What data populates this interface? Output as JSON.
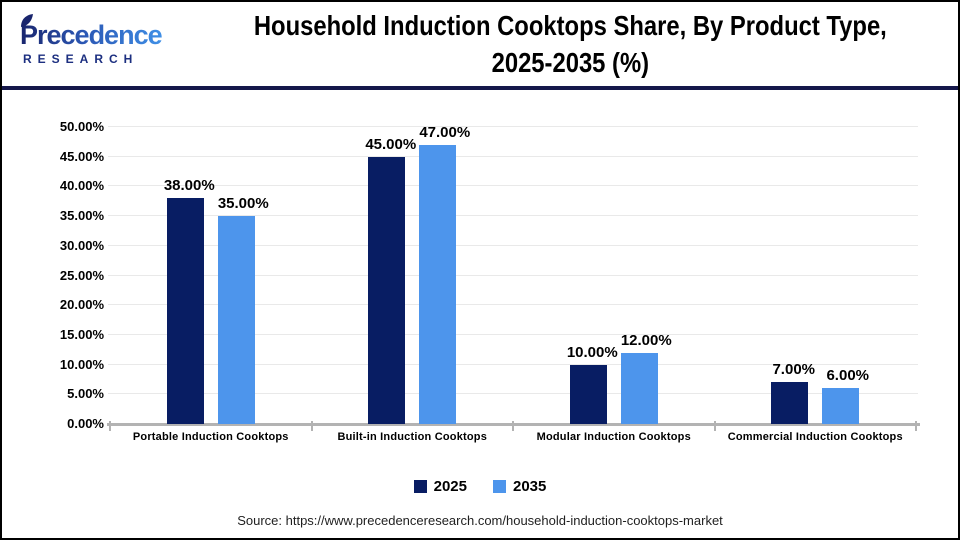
{
  "header": {
    "logo": {
      "name": "Precedence",
      "subname": "RESEARCH"
    },
    "title_line1": "Household Induction Cooktops Share, By Product Type,",
    "title_line2": "2025-2035 (%)"
  },
  "chart_data": {
    "type": "bar",
    "title": "Household Induction Cooktops Share, By Product Type, 2025-2035 (%)",
    "categories": [
      "Portable Induction Cooktops",
      "Built-in Induction Cooktops",
      "Modular Induction Cooktops",
      "Commercial Induction Cooktops"
    ],
    "series": [
      {
        "name": "2025",
        "color": "#081d63",
        "values": [
          38,
          45,
          10,
          7
        ],
        "labels": [
          "38.00%",
          "45.00%",
          "10.00%",
          "7.00%"
        ]
      },
      {
        "name": "2035",
        "color": "#4d95ec",
        "values": [
          35,
          47,
          12,
          6
        ],
        "labels": [
          "35.00%",
          "47.00%",
          "12.00%",
          "6.00%"
        ]
      }
    ],
    "xlabel": "",
    "ylabel": "",
    "ylim": [
      0,
      50
    ],
    "yticks": [
      0,
      5,
      10,
      15,
      20,
      25,
      30,
      35,
      40,
      45,
      50
    ],
    "ytick_labels": [
      "0.00%",
      "5.00%",
      "10.00%",
      "15.00%",
      "20.00%",
      "25.00%",
      "30.00%",
      "35.00%",
      "40.00%",
      "45.00%",
      "50.00%"
    ],
    "grid": true,
    "legend_position": "bottom"
  },
  "footer": {
    "source": "Source: https://www.precedenceresearch.com/household-induction-cooktops-market"
  },
  "colors": {
    "header_rule": "#15174a",
    "axis": "#b3b3b3",
    "gridline": "#e9e9e9",
    "logo_navy": "#19256d",
    "logo_blue": "#3f8fe6"
  }
}
